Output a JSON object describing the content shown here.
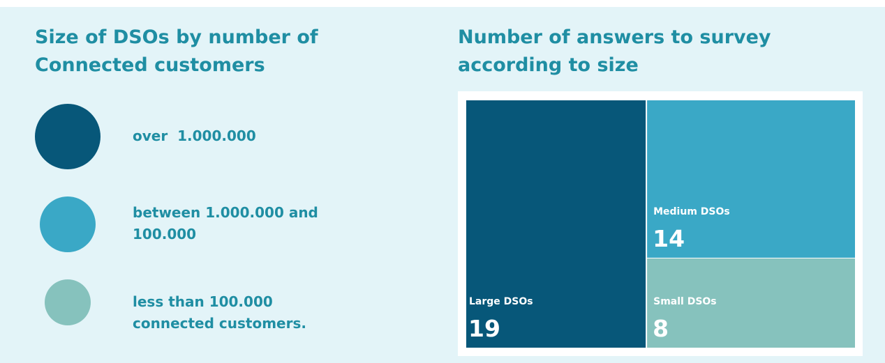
{
  "legend_panel": {
    "title": "Size of DSOs by number of Connected customers",
    "items": [
      {
        "label": "over  1.000.000",
        "color": "#075779"
      },
      {
        "label": "between 1.000.000 and 100.000",
        "color": "#3aa8c6"
      },
      {
        "label": "less than 100.000 connected customers.",
        "color": "#86c2bd"
      }
    ]
  },
  "chart_data": {
    "type": "treemap",
    "title": "Number of answers to survey according to size",
    "categories": [
      "Large DSOs",
      "Medium DSOs",
      "Small DSOs"
    ],
    "values": [
      19,
      14,
      8
    ],
    "colors": [
      "#075779",
      "#3aa8c6",
      "#86c2bd"
    ]
  }
}
